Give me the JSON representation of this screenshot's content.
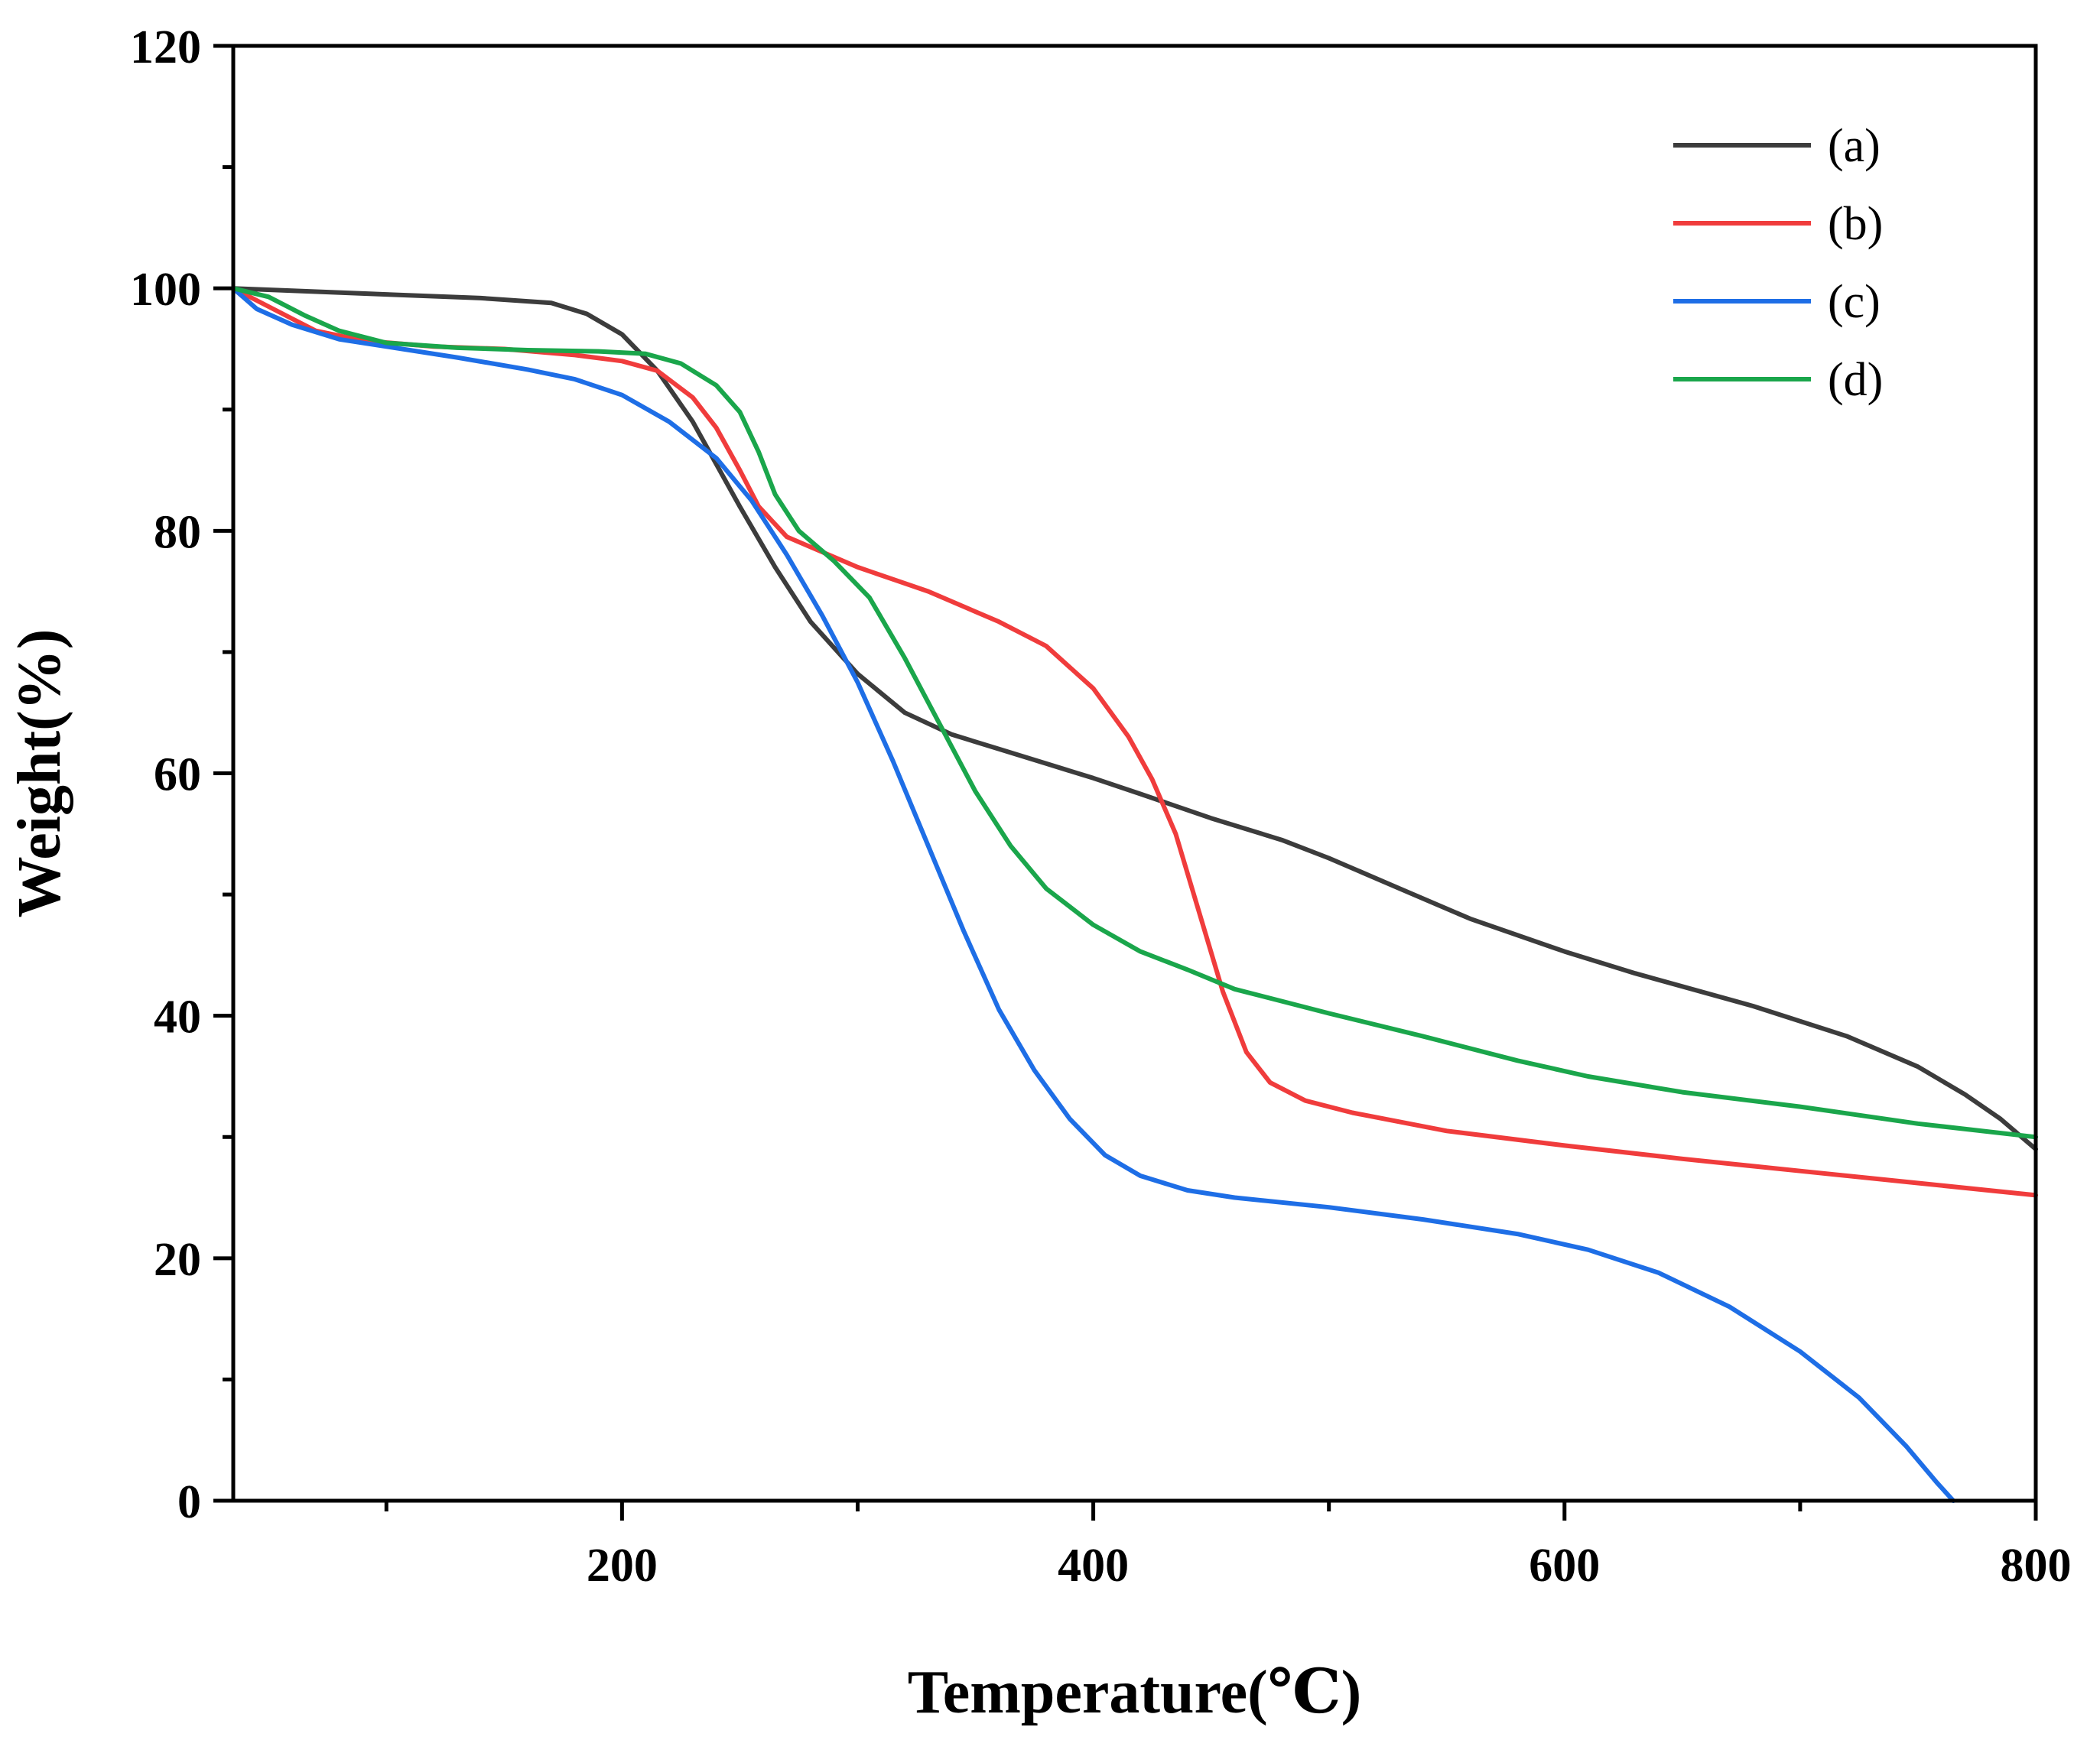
{
  "chart_data": {
    "type": "line",
    "title": "",
    "xlabel": "Temperature(℃)",
    "ylabel": "Weight(%)",
    "xlim": [
      35,
      800
    ],
    "ylim": [
      0,
      120
    ],
    "x_ticks": [
      200,
      400,
      600,
      800
    ],
    "x_tick_labels": [
      "200",
      "400",
      "600",
      "800"
    ],
    "x_minor_ticks": [
      100,
      300,
      500,
      700
    ],
    "y_ticks": [
      0,
      20,
      40,
      60,
      80,
      100,
      120
    ],
    "y_tick_labels": [
      "0",
      "20",
      "40",
      "60",
      "80",
      "100",
      "120"
    ],
    "y_minor_ticks": [
      10,
      30,
      50,
      70,
      90,
      110
    ],
    "grid": false,
    "legend_position": "top-right",
    "series": [
      {
        "name": "(a)",
        "color": "#3c3c3c",
        "points": [
          [
            35,
            100
          ],
          [
            60,
            99.8
          ],
          [
            100,
            99.5
          ],
          [
            140,
            99.2
          ],
          [
            170,
            98.8
          ],
          [
            185,
            97.9
          ],
          [
            200,
            96.2
          ],
          [
            215,
            93.2
          ],
          [
            230,
            89
          ],
          [
            240,
            85.5
          ],
          [
            250,
            82
          ],
          [
            265,
            77
          ],
          [
            280,
            72.5
          ],
          [
            300,
            68.2
          ],
          [
            320,
            65
          ],
          [
            340,
            63.2
          ],
          [
            360,
            62
          ],
          [
            380,
            60.8
          ],
          [
            400,
            59.6
          ],
          [
            420,
            58.3
          ],
          [
            450,
            56.3
          ],
          [
            480,
            54.5
          ],
          [
            500,
            53
          ],
          [
            530,
            50.5
          ],
          [
            560,
            48
          ],
          [
            600,
            45.3
          ],
          [
            630,
            43.5
          ],
          [
            680,
            40.8
          ],
          [
            720,
            38.3
          ],
          [
            750,
            35.8
          ],
          [
            770,
            33.5
          ],
          [
            785,
            31.5
          ],
          [
            800,
            29
          ]
        ]
      },
      {
        "name": "(b)",
        "color": "#f03c3c",
        "points": [
          [
            35,
            100
          ],
          [
            50,
            98.5
          ],
          [
            70,
            96.5
          ],
          [
            90,
            95.7
          ],
          [
            120,
            95.2
          ],
          [
            150,
            95
          ],
          [
            180,
            94.5
          ],
          [
            200,
            94
          ],
          [
            215,
            93.2
          ],
          [
            230,
            91
          ],
          [
            240,
            88.5
          ],
          [
            250,
            85
          ],
          [
            258,
            82
          ],
          [
            270,
            79.5
          ],
          [
            300,
            77
          ],
          [
            330,
            75
          ],
          [
            360,
            72.5
          ],
          [
            380,
            70.5
          ],
          [
            400,
            67
          ],
          [
            415,
            63
          ],
          [
            425,
            59.5
          ],
          [
            435,
            55
          ],
          [
            445,
            48.5
          ],
          [
            455,
            42
          ],
          [
            465,
            37
          ],
          [
            475,
            34.5
          ],
          [
            490,
            33
          ],
          [
            510,
            32
          ],
          [
            550,
            30.5
          ],
          [
            600,
            29.3
          ],
          [
            650,
            28.2
          ],
          [
            700,
            27.2
          ],
          [
            750,
            26.2
          ],
          [
            800,
            25.2
          ]
        ]
      },
      {
        "name": "(c)",
        "color": "#1e6ee6",
        "points": [
          [
            35,
            100
          ],
          [
            45,
            98.3
          ],
          [
            60,
            97
          ],
          [
            80,
            95.8
          ],
          [
            100,
            95.2
          ],
          [
            130,
            94.3
          ],
          [
            160,
            93.3
          ],
          [
            180,
            92.5
          ],
          [
            200,
            91.2
          ],
          [
            220,
            89
          ],
          [
            240,
            86
          ],
          [
            255,
            82.5
          ],
          [
            270,
            78
          ],
          [
            285,
            73
          ],
          [
            300,
            67.5
          ],
          [
            315,
            61
          ],
          [
            330,
            54
          ],
          [
            345,
            47
          ],
          [
            360,
            40.5
          ],
          [
            375,
            35.5
          ],
          [
            390,
            31.5
          ],
          [
            405,
            28.5
          ],
          [
            420,
            26.8
          ],
          [
            440,
            25.6
          ],
          [
            460,
            25
          ],
          [
            500,
            24.2
          ],
          [
            540,
            23.2
          ],
          [
            580,
            22
          ],
          [
            610,
            20.7
          ],
          [
            640,
            18.8
          ],
          [
            670,
            16
          ],
          [
            700,
            12.3
          ],
          [
            725,
            8.5
          ],
          [
            745,
            4.5
          ],
          [
            758,
            1.5
          ],
          [
            765,
            0
          ]
        ]
      },
      {
        "name": "(d)",
        "color": "#1aa64b",
        "points": [
          [
            35,
            100
          ],
          [
            50,
            99.3
          ],
          [
            65,
            97.8
          ],
          [
            80,
            96.5
          ],
          [
            100,
            95.5
          ],
          [
            130,
            95.1
          ],
          [
            160,
            94.9
          ],
          [
            190,
            94.8
          ],
          [
            210,
            94.6
          ],
          [
            225,
            93.8
          ],
          [
            240,
            92
          ],
          [
            250,
            89.8
          ],
          [
            258,
            86.5
          ],
          [
            265,
            83
          ],
          [
            275,
            80
          ],
          [
            290,
            77.5
          ],
          [
            305,
            74.5
          ],
          [
            320,
            69.5
          ],
          [
            335,
            64
          ],
          [
            350,
            58.5
          ],
          [
            365,
            54
          ],
          [
            380,
            50.5
          ],
          [
            400,
            47.5
          ],
          [
            420,
            45.3
          ],
          [
            440,
            43.8
          ],
          [
            460,
            42.2
          ],
          [
            480,
            41.2
          ],
          [
            500,
            40.2
          ],
          [
            540,
            38.3
          ],
          [
            580,
            36.3
          ],
          [
            610,
            35
          ],
          [
            650,
            33.7
          ],
          [
            700,
            32.5
          ],
          [
            750,
            31.1
          ],
          [
            800,
            30
          ]
        ]
      }
    ]
  }
}
